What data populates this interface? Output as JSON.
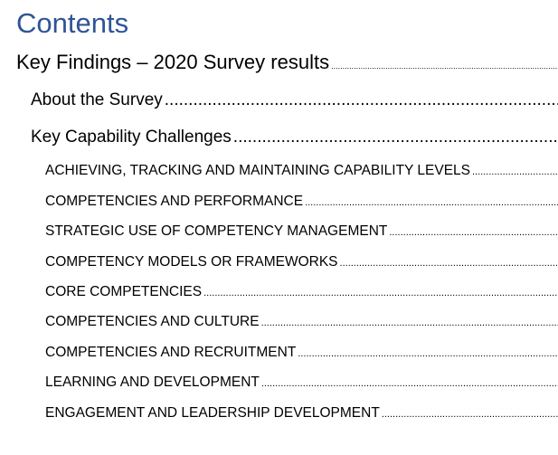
{
  "toc": {
    "heading": "Contents",
    "level1": {
      "text": "Key Findings – 2020 Survey results"
    },
    "level2": [
      {
        "text": "About the Survey"
      },
      {
        "text": "Key Capability Challenges"
      }
    ],
    "level3": [
      {
        "text": "ACHIEVING, TRACKING AND MAINTAINING CAPABILITY LEVELS"
      },
      {
        "text": "COMPETENCIES AND PERFORMANCE"
      },
      {
        "text": "STRATEGIC USE OF COMPETENCY MANAGEMENT"
      },
      {
        "text": "COMPETENCY MODELS OR FRAMEWORKS"
      },
      {
        "text": "CORE COMPETENCIES"
      },
      {
        "text": "COMPETENCIES AND CULTURE"
      },
      {
        "text": "COMPETENCIES AND RECRUITMENT"
      },
      {
        "text": "LEARNING AND DEVELOPMENT"
      },
      {
        "text": "ENGAGEMENT AND LEADERSHIP DEVELOPMENT"
      }
    ]
  },
  "colors": {
    "heading": "#2f5496",
    "text": "#000000",
    "background": "#ffffff"
  }
}
